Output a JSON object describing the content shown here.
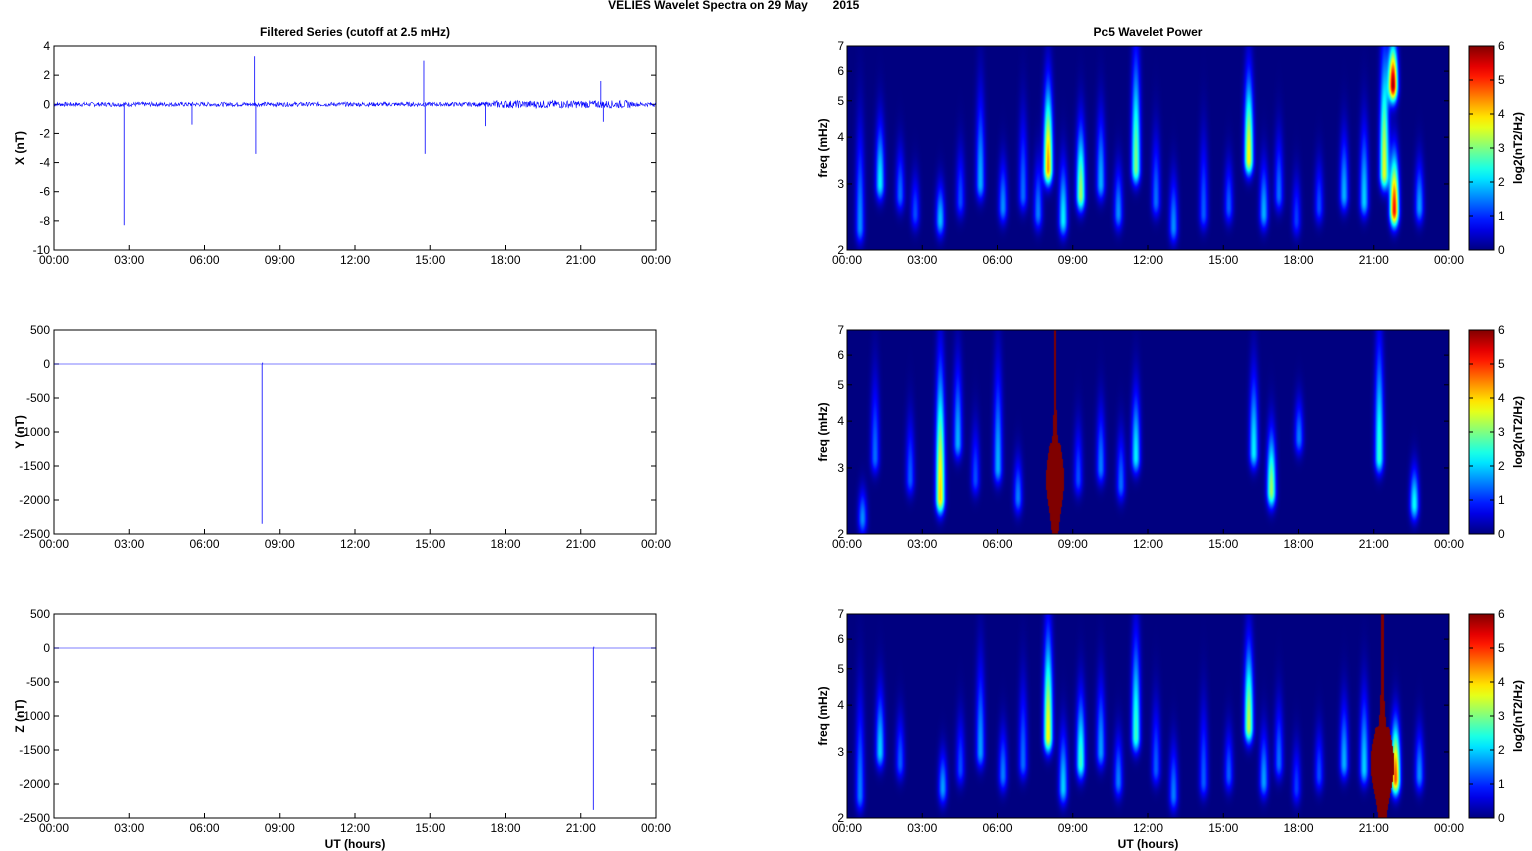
{
  "figure": {
    "title_left": "VELIES Wavelet Spectra on 29 May",
    "title_right": "2015"
  },
  "chart_data": [
    {
      "type": "line",
      "title": "Filtered Series (cutoff at 2.5 mHz)",
      "xlabel": "",
      "ylabel": "X (nT)",
      "x_ticks": [
        "00:00",
        "03:00",
        "06:00",
        "09:00",
        "12:00",
        "15:00",
        "18:00",
        "21:00",
        "00:00"
      ],
      "xlim_hours": [
        0,
        24
      ],
      "ylim": [
        -10,
        4
      ],
      "y_ticks": [
        4,
        2,
        0,
        -2,
        -4,
        -6,
        -8,
        -10
      ],
      "color": "#0000ff",
      "baseline_noise_nT": 0.15,
      "spikes": [
        {
          "t": 2.8,
          "y": -8.3
        },
        {
          "t": 5.5,
          "y": -1.4
        },
        {
          "t": 8.0,
          "y": 3.3
        },
        {
          "t": 8.05,
          "y": -3.4
        },
        {
          "t": 14.75,
          "y": 3.0
        },
        {
          "t": 14.8,
          "y": -3.4
        },
        {
          "t": 17.2,
          "y": -1.5
        },
        {
          "t": 21.8,
          "y": 1.6
        },
        {
          "t": 21.9,
          "y": -1.2
        }
      ]
    },
    {
      "type": "line",
      "xlabel": "",
      "ylabel": "Y (nT)",
      "x_ticks": [
        "00:00",
        "03:00",
        "06:00",
        "09:00",
        "12:00",
        "15:00",
        "18:00",
        "21:00",
        "00:00"
      ],
      "xlim_hours": [
        0,
        24
      ],
      "ylim": [
        -2500,
        500
      ],
      "y_ticks": [
        500,
        0,
        -500,
        -1000,
        -1500,
        -2000,
        -2500
      ],
      "color": "#0000ff",
      "spikes": [
        {
          "t": 8.3,
          "y": -2350
        },
        {
          "t": 8.32,
          "y": 20
        }
      ]
    },
    {
      "type": "line",
      "xlabel": "UT (hours)",
      "ylabel": "Z (nT)",
      "x_ticks": [
        "00:00",
        "03:00",
        "06:00",
        "09:00",
        "12:00",
        "15:00",
        "18:00",
        "21:00",
        "00:00"
      ],
      "xlim_hours": [
        0,
        24
      ],
      "ylim": [
        -2500,
        500
      ],
      "y_ticks": [
        500,
        0,
        -500,
        -1000,
        -1500,
        -2000,
        -2500
      ],
      "color": "#0000ff",
      "spikes": [
        {
          "t": 21.5,
          "y": -2380
        },
        {
          "t": 21.52,
          "y": 20
        }
      ]
    },
    {
      "type": "heatmap",
      "title": "Pc5 Wavelet Power",
      "xlabel": "",
      "ylabel": "freq (mHz)",
      "colorbar_label": "log2(nT2/Hz)",
      "colorbar_ticks": [
        0,
        1,
        2,
        3,
        4,
        5,
        6
      ],
      "clim": [
        0,
        6
      ],
      "x_ticks": [
        "00:00",
        "03:00",
        "06:00",
        "09:00",
        "12:00",
        "15:00",
        "18:00",
        "21:00",
        "00:00"
      ],
      "y_ticks": [
        7,
        6,
        5,
        4,
        3,
        2
      ],
      "ylim_mHz": [
        2,
        7
      ],
      "y_scale": "log",
      "colormap": "jet",
      "blobs": [
        {
          "t": 0.5,
          "f": 2.3,
          "ft": 4.5,
          "p": 1.6
        },
        {
          "t": 1.3,
          "f": 3.0,
          "ft": 4.5,
          "p": 2.2
        },
        {
          "t": 2.1,
          "f": 2.8,
          "ft": 3.8,
          "p": 1.4
        },
        {
          "t": 2.7,
          "f": 2.5,
          "ft": 3.2,
          "p": 1.2
        },
        {
          "t": 3.7,
          "f": 2.4,
          "ft": 3.0,
          "p": 1.9
        },
        {
          "t": 4.5,
          "f": 2.7,
          "ft": 3.8,
          "p": 1.2
        },
        {
          "t": 5.3,
          "f": 3.0,
          "ft": 5.5,
          "p": 1.8
        },
        {
          "t": 6.2,
          "f": 2.6,
          "ft": 3.5,
          "p": 1.6
        },
        {
          "t": 7.0,
          "f": 2.8,
          "ft": 4.8,
          "p": 1.4
        },
        {
          "t": 7.6,
          "f": 2.5,
          "ft": 3.5,
          "p": 1.5
        },
        {
          "t": 8.0,
          "f": 3.3,
          "ft": 5.6,
          "p": 4.4
        },
        {
          "t": 8.6,
          "f": 2.4,
          "ft": 3.5,
          "p": 2.2
        },
        {
          "t": 9.3,
          "f": 2.8,
          "ft": 4.4,
          "p": 3.2
        },
        {
          "t": 10.1,
          "f": 3.0,
          "ft": 4.8,
          "p": 1.8
        },
        {
          "t": 10.8,
          "f": 2.5,
          "ft": 3.4,
          "p": 1.6
        },
        {
          "t": 11.5,
          "f": 3.3,
          "ft": 7.0,
          "p": 3.0
        },
        {
          "t": 12.3,
          "f": 2.7,
          "ft": 4.2,
          "p": 1.4
        },
        {
          "t": 13.0,
          "f": 2.3,
          "ft": 3.2,
          "p": 1.6
        },
        {
          "t": 14.2,
          "f": 2.5,
          "ft": 4.2,
          "p": 1.3
        },
        {
          "t": 15.2,
          "f": 2.6,
          "ft": 3.5,
          "p": 1.3
        },
        {
          "t": 16.0,
          "f": 3.5,
          "ft": 6.0,
          "p": 3.8
        },
        {
          "t": 16.6,
          "f": 2.5,
          "ft": 3.5,
          "p": 1.8
        },
        {
          "t": 17.2,
          "f": 2.8,
          "ft": 4.2,
          "p": 1.4
        },
        {
          "t": 17.9,
          "f": 2.4,
          "ft": 3.2,
          "p": 1.1
        },
        {
          "t": 18.8,
          "f": 2.6,
          "ft": 3.5,
          "p": 1.2
        },
        {
          "t": 19.8,
          "f": 2.8,
          "ft": 4.2,
          "p": 1.8
        },
        {
          "t": 20.6,
          "f": 2.7,
          "ft": 4.5,
          "p": 2.0
        },
        {
          "t": 21.4,
          "f": 3.2,
          "ft": 7.0,
          "p": 3.6
        },
        {
          "t": 21.75,
          "f": 5.5,
          "ft": 7.0,
          "p": 5.8
        },
        {
          "t": 21.8,
          "f": 2.55,
          "ft": 3.6,
          "p": 5.2
        },
        {
          "t": 22.8,
          "f": 2.6,
          "ft": 3.5,
          "p": 1.7
        }
      ]
    },
    {
      "type": "heatmap",
      "xlabel": "",
      "ylabel": "freq (mHz)",
      "colorbar_label": "log2(nT2/Hz)",
      "colorbar_ticks": [
        0,
        1,
        2,
        3,
        4,
        5,
        6
      ],
      "clim": [
        0,
        6
      ],
      "x_ticks": [
        "00:00",
        "03:00",
        "06:00",
        "09:00",
        "12:00",
        "15:00",
        "18:00",
        "21:00",
        "00:00"
      ],
      "y_ticks": [
        7,
        6,
        5,
        4,
        3,
        2
      ],
      "ylim_mHz": [
        2,
        7
      ],
      "y_scale": "log",
      "colormap": "jet",
      "blobs": [
        {
          "t": 0.6,
          "f": 2.2,
          "ft": 2.6,
          "p": 1.6
        },
        {
          "t": 1.1,
          "f": 3.2,
          "ft": 5.5,
          "p": 1.4
        },
        {
          "t": 2.5,
          "f": 2.8,
          "ft": 4.2,
          "p": 1.3
        },
        {
          "t": 3.7,
          "f": 2.5,
          "ft": 5.8,
          "p": 4.0
        },
        {
          "t": 4.4,
          "f": 3.5,
          "ft": 6.0,
          "p": 1.8
        },
        {
          "t": 5.1,
          "f": 2.8,
          "ft": 4.0,
          "p": 1.2
        },
        {
          "t": 6.0,
          "f": 3.0,
          "ft": 6.0,
          "p": 1.8
        },
        {
          "t": 6.8,
          "f": 2.5,
          "ft": 3.2,
          "p": 1.5
        },
        {
          "t": 9.2,
          "f": 2.8,
          "ft": 4.0,
          "p": 1.2
        },
        {
          "t": 10.1,
          "f": 3.0,
          "ft": 4.5,
          "p": 1.5
        },
        {
          "t": 10.9,
          "f": 2.7,
          "ft": 3.8,
          "p": 1.4
        },
        {
          "t": 11.5,
          "f": 3.2,
          "ft": 5.0,
          "p": 2.2
        },
        {
          "t": 16.2,
          "f": 3.3,
          "ft": 5.6,
          "p": 2.2
        },
        {
          "t": 16.9,
          "f": 2.6,
          "ft": 3.8,
          "p": 3.2
        },
        {
          "t": 18.0,
          "f": 3.6,
          "ft": 4.6,
          "p": 1.5
        },
        {
          "t": 21.2,
          "f": 3.2,
          "ft": 7.0,
          "p": 2.5
        },
        {
          "t": 22.6,
          "f": 2.4,
          "ft": 3.0,
          "p": 2.3
        }
      ],
      "saturated_band": {
        "t_start": 7.95,
        "t_end": 8.6,
        "t_top": 8.25,
        "f_bulge": 2.8,
        "p": 6
      }
    },
    {
      "type": "heatmap",
      "xlabel": "UT (hours)",
      "ylabel": "freq (mHz)",
      "colorbar_label": "log2(nT2/Hz)",
      "colorbar_ticks": [
        0,
        1,
        2,
        3,
        4,
        5,
        6
      ],
      "clim": [
        0,
        6
      ],
      "x_ticks": [
        "00:00",
        "03:00",
        "06:00",
        "09:00",
        "12:00",
        "15:00",
        "18:00",
        "21:00",
        "00:00"
      ],
      "y_ticks": [
        7,
        6,
        5,
        4,
        3,
        2
      ],
      "ylim_mHz": [
        2,
        7
      ],
      "y_scale": "log",
      "colormap": "jet",
      "blobs": [
        {
          "t": 0.5,
          "f": 2.3,
          "ft": 4.5,
          "p": 1.5
        },
        {
          "t": 1.3,
          "f": 3.0,
          "ft": 4.5,
          "p": 2.0
        },
        {
          "t": 2.1,
          "f": 2.8,
          "ft": 3.8,
          "p": 1.3
        },
        {
          "t": 3.8,
          "f": 2.4,
          "ft": 3.0,
          "p": 1.7
        },
        {
          "t": 4.5,
          "f": 2.7,
          "ft": 3.8,
          "p": 1.2
        },
        {
          "t": 5.3,
          "f": 3.0,
          "ft": 5.5,
          "p": 1.7
        },
        {
          "t": 6.2,
          "f": 2.6,
          "ft": 3.5,
          "p": 1.5
        },
        {
          "t": 7.0,
          "f": 2.8,
          "ft": 4.8,
          "p": 1.4
        },
        {
          "t": 8.0,
          "f": 3.3,
          "ft": 6.5,
          "p": 3.8
        },
        {
          "t": 8.6,
          "f": 2.4,
          "ft": 3.5,
          "p": 2.0
        },
        {
          "t": 9.3,
          "f": 2.8,
          "ft": 4.4,
          "p": 2.6
        },
        {
          "t": 10.1,
          "f": 3.0,
          "ft": 4.8,
          "p": 1.7
        },
        {
          "t": 10.8,
          "f": 2.5,
          "ft": 3.4,
          "p": 1.5
        },
        {
          "t": 11.5,
          "f": 3.3,
          "ft": 6.5,
          "p": 2.6
        },
        {
          "t": 12.3,
          "f": 2.7,
          "ft": 4.2,
          "p": 1.3
        },
        {
          "t": 13.0,
          "f": 2.3,
          "ft": 3.2,
          "p": 1.5
        },
        {
          "t": 14.2,
          "f": 2.5,
          "ft": 4.2,
          "p": 1.3
        },
        {
          "t": 15.2,
          "f": 2.6,
          "ft": 3.5,
          "p": 1.3
        },
        {
          "t": 16.0,
          "f": 3.5,
          "ft": 6.0,
          "p": 3.4
        },
        {
          "t": 16.6,
          "f": 2.5,
          "ft": 3.5,
          "p": 1.7
        },
        {
          "t": 17.2,
          "f": 2.8,
          "ft": 4.2,
          "p": 1.4
        },
        {
          "t": 17.9,
          "f": 2.4,
          "ft": 3.2,
          "p": 1.1
        },
        {
          "t": 18.8,
          "f": 2.6,
          "ft": 3.5,
          "p": 1.2
        },
        {
          "t": 19.8,
          "f": 2.8,
          "ft": 4.2,
          "p": 1.8
        },
        {
          "t": 20.6,
          "f": 2.7,
          "ft": 4.5,
          "p": 2.0
        },
        {
          "t": 21.85,
          "f": 2.55,
          "ft": 3.6,
          "p": 4.8
        },
        {
          "t": 22.8,
          "f": 2.6,
          "ft": 3.5,
          "p": 1.6
        }
      ],
      "saturated_band": {
        "t_start": 20.9,
        "t_end": 21.75,
        "t_top": 21.35,
        "f_bulge": 2.8,
        "p": 6
      }
    }
  ]
}
